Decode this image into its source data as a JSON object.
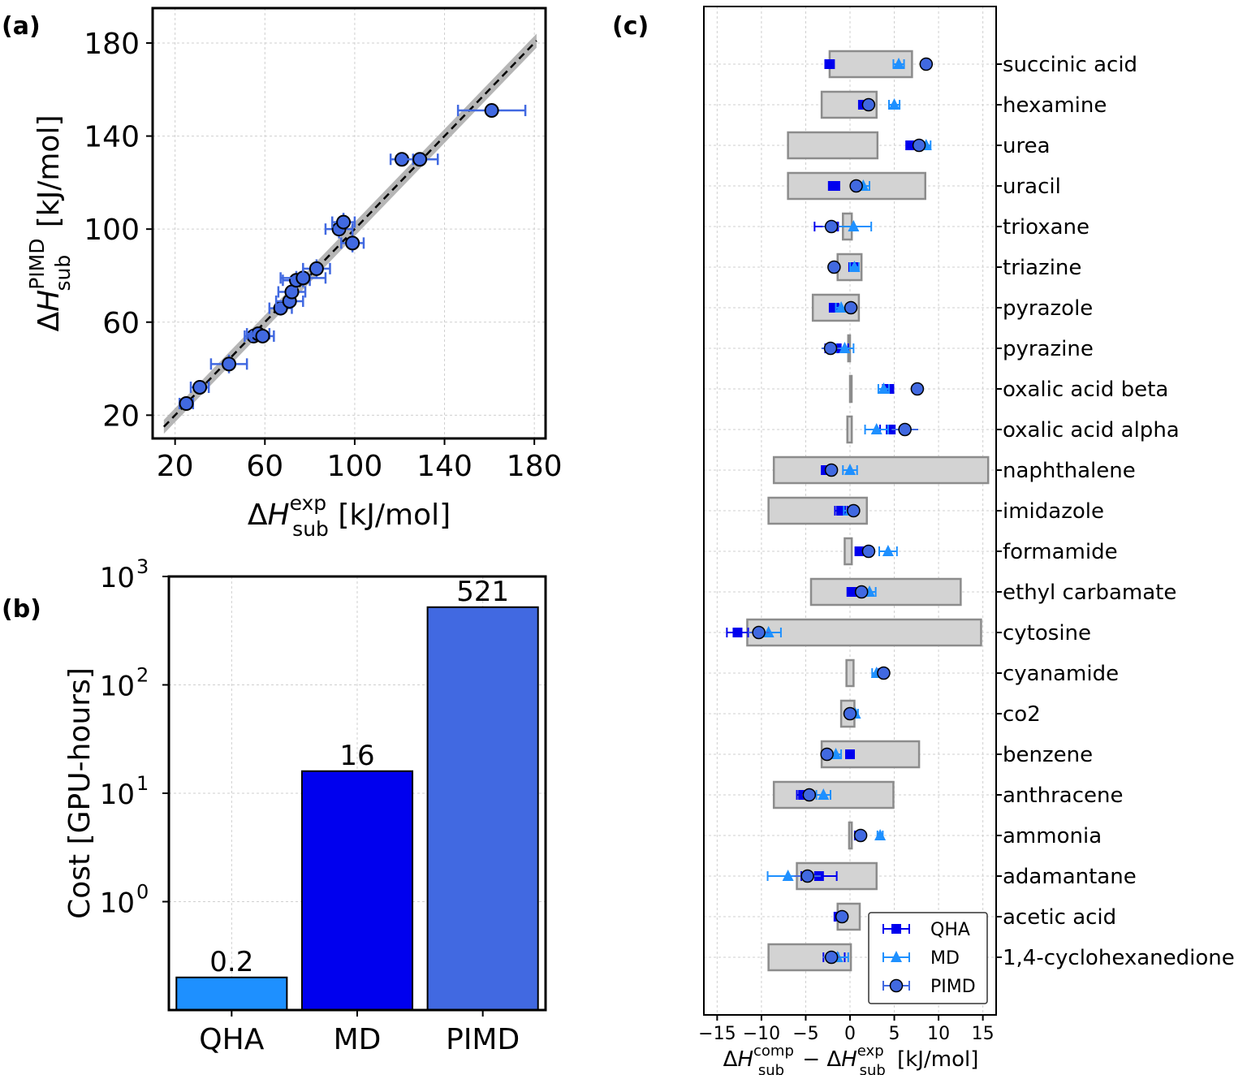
{
  "panels": {
    "a": "(a)",
    "b": "(b)",
    "c": "(c)"
  },
  "chart_data": [
    {
      "panel": "(a)",
      "type": "scatter",
      "xlabel": "ΔH sub exp [kJ/mol]",
      "ylabel": "ΔH sub PIMD [kJ/mol]",
      "xlim": [
        10,
        185
      ],
      "ylim": [
        10,
        195
      ],
      "xticks": [
        "20",
        "60",
        "100",
        "140",
        "180"
      ],
      "yticks": [
        "20",
        "60",
        "100",
        "140",
        "180"
      ],
      "grid": true,
      "diagonal_line": "y = x (dashed) with grey uncertainty band",
      "points": [
        {
          "x": 25,
          "y": 25,
          "xerr": 3,
          "yerr": 2
        },
        {
          "x": 31,
          "y": 32,
          "xerr": 4,
          "yerr": 2
        },
        {
          "x": 44,
          "y": 42,
          "xerr": 8,
          "yerr": 4
        },
        {
          "x": 55,
          "y": 54,
          "xerr": 4,
          "yerr": 3
        },
        {
          "x": 57,
          "y": 55,
          "xerr": 5,
          "yerr": 3
        },
        {
          "x": 59,
          "y": 54,
          "xerr": 5,
          "yerr": 3
        },
        {
          "x": 67,
          "y": 66,
          "xerr": 5,
          "yerr": 3
        },
        {
          "x": 71,
          "y": 69,
          "xerr": 6,
          "yerr": 3
        },
        {
          "x": 72,
          "y": 73,
          "xerr": 6,
          "yerr": 4
        },
        {
          "x": 74,
          "y": 78,
          "xerr": 6,
          "yerr": 4
        },
        {
          "x": 77,
          "y": 79,
          "xerr": 10,
          "yerr": 4
        },
        {
          "x": 83,
          "y": 83,
          "xerr": 6,
          "yerr": 4
        },
        {
          "x": 93,
          "y": 100,
          "xerr": 6,
          "yerr": 4
        },
        {
          "x": 95,
          "y": 103,
          "xerr": 5,
          "yerr": 4
        },
        {
          "x": 99,
          "y": 94,
          "xerr": 5,
          "yerr": 4
        },
        {
          "x": 121,
          "y": 130,
          "xerr": 5,
          "yerr": 3
        },
        {
          "x": 129,
          "y": 130,
          "xerr": 8,
          "yerr": 3
        },
        {
          "x": 161,
          "y": 151,
          "xerr": 15,
          "yerr": 3
        }
      ]
    },
    {
      "panel": "(b)",
      "type": "bar",
      "yscale": "log",
      "ylabel": "Cost [GPU-hours]",
      "ylim": [
        0.1,
        1000
      ],
      "ytick_labels": [
        "10",
        "10",
        "10",
        "10"
      ],
      "ytick_exponents": [
        "0",
        "1",
        "2",
        "3"
      ],
      "ytick_values": [
        1,
        10,
        100,
        1000
      ],
      "categories": [
        "QHA",
        "MD",
        "PIMD"
      ],
      "values": [
        0.2,
        16,
        521
      ],
      "value_labels": [
        "0.2",
        "16",
        "521"
      ],
      "colors": [
        "#1e90ff",
        "#0000ee",
        "#4169e1"
      ],
      "grid": true
    },
    {
      "panel": "(c)",
      "type": "scatter",
      "xlabel": "ΔH sub comp − ΔH sub exp [kJ/mol]",
      "xlim": [
        -16.5,
        16.5
      ],
      "xticks": [
        "−15",
        "−10",
        "−5",
        "0",
        "5",
        "10",
        "15"
      ],
      "xtick_values": [
        -15,
        -10,
        -5,
        0,
        5,
        10,
        15
      ],
      "grid": true,
      "legend": {
        "placement": "lower-right",
        "entries": [
          "QHA",
          "MD",
          "PIMD"
        ]
      },
      "series_colors": {
        "QHA": "#0000ee",
        "MD": "#1e90ff",
        "PIMD": "#4169e1"
      },
      "molecules": [
        {
          "name": "succinic acid",
          "box": [
            -2.3,
            7
          ],
          "QHA": -2.3,
          "QHA_err": 0.5,
          "MD": 5.5,
          "MD_err": 0.6,
          "PIMD": 8.6,
          "PIMD_err": 0.7
        },
        {
          "name": "hexamine",
          "box": [
            -3.2,
            3
          ],
          "QHA": 1.5,
          "QHA_err": 0.5,
          "MD": 5,
          "MD_err": 0.6,
          "PIMD": 2.1,
          "PIMD_err": 0.6
        },
        {
          "name": "urea",
          "box": [
            -7,
            3.1
          ],
          "QHA": 6.8,
          "QHA_err": 0.4,
          "MD": 8.6,
          "MD_err": 0.5,
          "PIMD": 7.8,
          "PIMD_err": 0.5
        },
        {
          "name": "uracil",
          "box": [
            -7,
            8.5
          ],
          "QHA": -1.8,
          "QHA_err": 0.6,
          "MD": 1.5,
          "MD_err": 0.7,
          "PIMD": 0.7,
          "PIMD_err": 0.7
        },
        {
          "name": "trioxane",
          "box": [
            -0.8,
            0.2
          ],
          "QHA": -1.8,
          "QHA_err": 2.2,
          "MD": 0.4,
          "MD_err": 2,
          "PIMD": -2.1,
          "PIMD_err": 1
        },
        {
          "name": "triazine",
          "box": [
            -1.4,
            1.3
          ],
          "QHA": 0.4,
          "QHA_err": 0.5,
          "MD": 0.5,
          "MD_err": 0.5,
          "PIMD": -1.8,
          "PIMD_err": 0.5
        },
        {
          "name": "pyrazole",
          "box": [
            -4.2,
            1
          ],
          "QHA": -1.8,
          "QHA_err": 0.5,
          "MD": -1,
          "MD_err": 0.6,
          "PIMD": 0.1,
          "PIMD_err": 0.6
        },
        {
          "name": "pyrazine",
          "box": [
            -0.2,
            0
          ],
          "QHA": -1.5,
          "QHA_err": 1.3,
          "MD": -0.6,
          "MD_err": 1,
          "PIMD": -2.2,
          "PIMD_err": 1
        },
        {
          "name": "oxalic acid beta",
          "box": [
            0,
            0
          ],
          "QHA": 4.3,
          "QHA_err": 0.6,
          "MD": 3.8,
          "MD_err": 0.6,
          "PIMD": 7.6,
          "PIMD_err": 0.5
        },
        {
          "name": "oxalic acid alpha",
          "box": [
            -0.3,
            0.2
          ],
          "QHA": 4.6,
          "QHA_err": 1.2,
          "MD": 3,
          "MD_err": 1.3,
          "PIMD": 6.2,
          "PIMD_err": 1.5
        },
        {
          "name": "naphthalene",
          "box": [
            -8.6,
            15.6
          ],
          "QHA": -2.6,
          "QHA_err": 0.6,
          "MD": 0,
          "MD_err": 0.8,
          "PIMD": -2.1,
          "PIMD_err": 0.7
        },
        {
          "name": "imidazole",
          "box": [
            -9.2,
            1.9
          ],
          "QHA": -1,
          "QHA_err": 0.7,
          "MD": 0,
          "MD_err": 0.7,
          "PIMD": 0.4,
          "PIMD_err": 0.7
        },
        {
          "name": "formamide",
          "box": [
            -0.6,
            0.2
          ],
          "QHA": 1.2,
          "QHA_err": 0.6,
          "MD": 4.3,
          "MD_err": 1,
          "PIMD": 2.1,
          "PIMD_err": 0.6
        },
        {
          "name": "ethyl carbamate",
          "box": [
            -4.4,
            12.5
          ],
          "QHA": 0.3,
          "QHA_err": 0.6,
          "MD": 2.2,
          "MD_err": 0.7,
          "PIMD": 1.3,
          "PIMD_err": 0.7
        },
        {
          "name": "cytosine",
          "box": [
            -11.6,
            14.8
          ],
          "QHA": -12.7,
          "QHA_err": 1.2,
          "MD": -9.2,
          "MD_err": 1.4,
          "PIMD": -10.3,
          "PIMD_err": 1.2
        },
        {
          "name": "cyanamide",
          "box": [
            -0.4,
            0.4
          ],
          "QHA": 3.7,
          "QHA_err": 0.4,
          "MD": 3,
          "MD_err": 0.5,
          "PIMD": 3.8,
          "PIMD_err": 0.5
        },
        {
          "name": "co2",
          "box": [
            -1,
            0.5
          ],
          "QHA": 0.1,
          "QHA_err": 0.3,
          "MD": 0.6,
          "MD_err": 0.3,
          "PIMD": 0,
          "PIMD_err": 0.3
        },
        {
          "name": "benzene",
          "box": [
            -3.2,
            7.8
          ],
          "QHA": 0,
          "QHA_err": 0.4,
          "MD": -1.6,
          "MD_err": 0.6,
          "PIMD": -2.6,
          "PIMD_err": 0.6
        },
        {
          "name": "anthracene",
          "box": [
            -8.6,
            4.9
          ],
          "QHA": -5.3,
          "QHA_err": 0.7,
          "MD": -3,
          "MD_err": 0.8,
          "PIMD": -4.6,
          "PIMD_err": 0.8
        },
        {
          "name": "ammonia",
          "box": [
            -0.1,
            0.2
          ],
          "QHA": 1,
          "QHA_err": 0.3,
          "MD": 3.4,
          "MD_err": 0.3,
          "PIMD": 1.2,
          "PIMD_err": 0.4
        },
        {
          "name": "adamantane",
          "box": [
            -6,
            3
          ],
          "QHA": -3.5,
          "QHA_err": 2,
          "MD": -7,
          "MD_err": 2.3,
          "PIMD": -4.8,
          "PIMD_err": 1.5
        },
        {
          "name": "acetic acid",
          "box": [
            -1.4,
            1.1
          ],
          "QHA": -1.3,
          "QHA_err": 0.4,
          "MD": -0.9,
          "MD_err": 0.4,
          "PIMD": -0.9,
          "PIMD_err": 0.4
        },
        {
          "name": "1,4-cyclohexanedione",
          "box": [
            -9.2,
            0.1
          ],
          "QHA": -1.8,
          "QHA_err": 1.2,
          "MD": -1.4,
          "MD_err": 1.2,
          "PIMD": -2.1,
          "PIMD_err": 1
        }
      ]
    }
  ]
}
